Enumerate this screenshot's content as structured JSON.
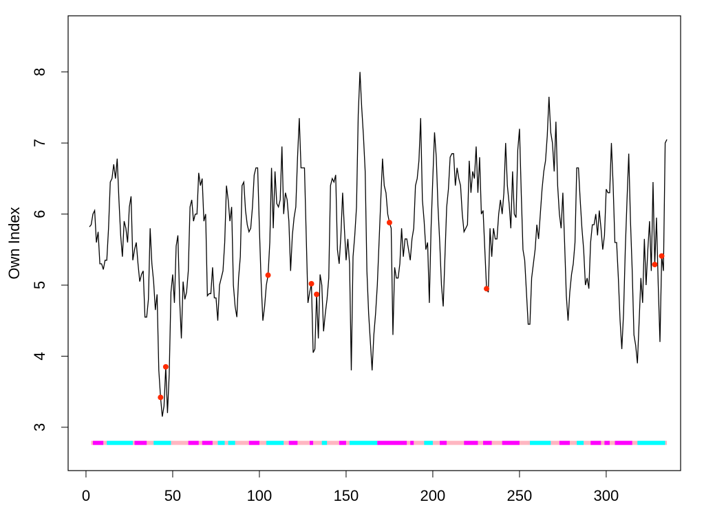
{
  "chart_data": {
    "type": "line",
    "y_label": "Own Index",
    "color": "#000000",
    "x": [
      2,
      3,
      4,
      5,
      6,
      7,
      8,
      9,
      10,
      11,
      12,
      13,
      14,
      15,
      16,
      17,
      18,
      19,
      20,
      21,
      22,
      23,
      24,
      25,
      26,
      27,
      28,
      29,
      30,
      31,
      32,
      33,
      34,
      35,
      36,
      37,
      38,
      39,
      40,
      41,
      42,
      43,
      44,
      45,
      46,
      47,
      48,
      49,
      50,
      51,
      52,
      53,
      54,
      55,
      56,
      57,
      58,
      59,
      60,
      61,
      62,
      63,
      64,
      65,
      66,
      67,
      68,
      69,
      70,
      71,
      72,
      73,
      74,
      75,
      76,
      77,
      78,
      79,
      80,
      81,
      82,
      83,
      84,
      85,
      86,
      87,
      88,
      89,
      90,
      91,
      92,
      93,
      94,
      95,
      96,
      97,
      98,
      99,
      100,
      101,
      102,
      103,
      104,
      105,
      106,
      107,
      108,
      109,
      110,
      111,
      112,
      113,
      114,
      115,
      116,
      117,
      118,
      119,
      120,
      121,
      122,
      123,
      124,
      125,
      126,
      127,
      128,
      129,
      130,
      131,
      132,
      133,
      134,
      135,
      136,
      137,
      138,
      139,
      140,
      141,
      142,
      143,
      144,
      145,
      146,
      147,
      148,
      149,
      150,
      151,
      152,
      153,
      154,
      155,
      156,
      157,
      158,
      159,
      160,
      161,
      162,
      163,
      164,
      165,
      166,
      167,
      168,
      169,
      170,
      171,
      172,
      173,
      174,
      175,
      176,
      177,
      178,
      179,
      180,
      181,
      182,
      183,
      184,
      185,
      186,
      187,
      188,
      189,
      190,
      191,
      192,
      193,
      194,
      195,
      196,
      197,
      198,
      199,
      200,
      201,
      202,
      203,
      204,
      205,
      206,
      207,
      208,
      209,
      210,
      211,
      212,
      213,
      214,
      215,
      216,
      217,
      218,
      219,
      220,
      221,
      222,
      223,
      224,
      225,
      226,
      227,
      228,
      229,
      230,
      231,
      232,
      233,
      234,
      235,
      236,
      237,
      238,
      239,
      240,
      241,
      242,
      243,
      244,
      245,
      246,
      247,
      248,
      249,
      250,
      251,
      252,
      253,
      254,
      255,
      256,
      257,
      258,
      259,
      260,
      261,
      262,
      263,
      264,
      265,
      266,
      267,
      268,
      269,
      270,
      271,
      272,
      273,
      274,
      275,
      276,
      277,
      278,
      279,
      280,
      281,
      282,
      283,
      284,
      285,
      286,
      287,
      288,
      289,
      290,
      291,
      292,
      293,
      294,
      295,
      296,
      297,
      298,
      299,
      300,
      301,
      302,
      303,
      304,
      305,
      306,
      307,
      308,
      309,
      310,
      311,
      312,
      313,
      314,
      315,
      316,
      317,
      318,
      319,
      320,
      321,
      322,
      323,
      324,
      325,
      326,
      327,
      328,
      329,
      330,
      331,
      332,
      333,
      334,
      335
    ],
    "values": [
      5.82,
      5.85,
      6.0,
      6.05,
      5.6,
      5.75,
      5.3,
      5.3,
      5.22,
      5.35,
      5.35,
      5.8,
      6.45,
      6.5,
      6.7,
      6.5,
      6.78,
      6.2,
      5.7,
      5.4,
      5.9,
      5.8,
      5.6,
      6.1,
      6.25,
      5.35,
      5.5,
      5.6,
      5.3,
      5.05,
      5.15,
      5.2,
      4.55,
      4.55,
      4.8,
      5.8,
      5.3,
      5.05,
      4.65,
      4.87,
      3.8,
      3.42,
      3.15,
      3.3,
      3.85,
      3.2,
      3.75,
      4.9,
      5.15,
      4.75,
      5.55,
      5.7,
      4.8,
      4.25,
      5.05,
      4.8,
      4.9,
      5.2,
      6.1,
      6.2,
      5.9,
      6.0,
      6.0,
      6.58,
      6.4,
      6.5,
      5.9,
      6.0,
      4.85,
      4.88,
      4.88,
      5.25,
      4.82,
      4.82,
      4.5,
      5.0,
      5.1,
      5.2,
      5.6,
      6.4,
      6.2,
      5.9,
      6.1,
      5.0,
      4.7,
      4.55,
      5.1,
      5.4,
      6.4,
      6.45,
      6.05,
      5.85,
      5.75,
      5.8,
      6.1,
      6.55,
      6.65,
      6.65,
      5.8,
      5.05,
      4.5,
      4.7,
      5.0,
      5.14,
      5.6,
      6.65,
      5.8,
      6.6,
      6.15,
      6.1,
      6.2,
      6.95,
      6.0,
      6.3,
      6.2,
      5.9,
      5.2,
      5.7,
      5.95,
      6.1,
      6.8,
      7.35,
      6.65,
      6.65,
      6.65,
      5.7,
      4.75,
      4.9,
      5.02,
      4.05,
      4.1,
      4.87,
      4.25,
      5.15,
      5.0,
      4.35,
      4.6,
      4.8,
      5.1,
      6.4,
      6.5,
      6.45,
      6.55,
      5.5,
      5.3,
      5.7,
      6.3,
      5.8,
      5.35,
      5.65,
      5.3,
      3.8,
      5.4,
      5.7,
      6.1,
      7.4,
      8.0,
      7.5,
      7.1,
      6.6,
      5.2,
      4.6,
      4.2,
      3.8,
      4.3,
      4.6,
      5.0,
      5.6,
      6.2,
      6.78,
      6.4,
      6.3,
      6.0,
      5.88,
      5.8,
      4.3,
      5.25,
      5.1,
      5.1,
      5.3,
      5.8,
      5.4,
      5.65,
      5.65,
      5.5,
      5.35,
      5.65,
      5.8,
      6.4,
      6.5,
      6.75,
      7.35,
      6.2,
      5.9,
      5.5,
      5.6,
      4.75,
      5.8,
      6.5,
      7.15,
      6.8,
      6.1,
      5.6,
      5.0,
      4.7,
      5.4,
      6.1,
      6.35,
      6.8,
      6.85,
      6.85,
      6.4,
      6.65,
      6.5,
      6.4,
      6.0,
      5.75,
      5.8,
      5.85,
      6.75,
      6.3,
      6.6,
      6.5,
      6.95,
      6.3,
      6.8,
      6.0,
      6.05,
      5.5,
      4.95,
      4.9,
      5.8,
      5.4,
      5.8,
      5.65,
      5.65,
      6.0,
      6.2,
      6.0,
      6.3,
      7.0,
      6.4,
      6.15,
      5.8,
      6.6,
      6.0,
      5.95,
      6.9,
      7.2,
      6.3,
      5.5,
      5.35,
      4.9,
      4.45,
      4.45,
      5.1,
      5.3,
      5.5,
      5.85,
      5.65,
      6.0,
      6.35,
      6.6,
      6.75,
      7.1,
      7.65,
      7.15,
      7.0,
      6.6,
      7.3,
      6.4,
      6.0,
      5.8,
      6.3,
      5.6,
      4.85,
      4.5,
      4.9,
      5.15,
      5.3,
      5.6,
      6.65,
      6.65,
      6.2,
      5.8,
      5.5,
      5.0,
      5.1,
      4.95,
      5.6,
      5.85,
      5.85,
      6.0,
      5.7,
      6.05,
      5.8,
      5.5,
      5.7,
      6.35,
      6.3,
      6.3,
      7.0,
      6.4,
      5.6,
      5.6,
      5.1,
      4.5,
      4.1,
      4.6,
      5.5,
      6.2,
      6.85,
      5.9,
      5.2,
      4.3,
      4.15,
      3.9,
      4.5,
      5.1,
      4.75,
      5.65,
      5.0,
      5.5,
      5.9,
      5.2,
      6.45,
      5.29,
      5.95,
      5.0,
      4.2,
      5.41,
      5.2,
      7.0,
      7.05
    ],
    "points": {
      "color": "#ff2a00",
      "x": [
        43,
        46,
        105,
        130,
        133,
        175,
        231,
        328,
        332
      ],
      "values": [
        3.42,
        3.85,
        5.14,
        5.02,
        4.87,
        5.88,
        4.95,
        5.29,
        5.41
      ]
    },
    "band_y": 2.78,
    "band_color": "#ffb6c1",
    "bands": [
      {
        "start": 4,
        "end": 10,
        "color": "#ff00ff"
      },
      {
        "start": 12,
        "end": 27,
        "color": "#00ffff"
      },
      {
        "start": 28,
        "end": 35,
        "color": "#ff00ff"
      },
      {
        "start": 39,
        "end": 49,
        "color": "#00ffff"
      },
      {
        "start": 59,
        "end": 65,
        "color": "#ff00ff"
      },
      {
        "start": 67,
        "end": 73,
        "color": "#ff00ff"
      },
      {
        "start": 76,
        "end": 80,
        "color": "#00ffff"
      },
      {
        "start": 82,
        "end": 86,
        "color": "#00ffff"
      },
      {
        "start": 94,
        "end": 100,
        "color": "#ff00ff"
      },
      {
        "start": 104,
        "end": 114,
        "color": "#00ffff"
      },
      {
        "start": 117,
        "end": 122,
        "color": "#ff00ff"
      },
      {
        "start": 129,
        "end": 131,
        "color": "#ff00ff"
      },
      {
        "start": 136,
        "end": 139,
        "color": "#00ffff"
      },
      {
        "start": 146,
        "end": 150,
        "color": "#ff00ff"
      },
      {
        "start": 152,
        "end": 168,
        "color": "#00ffff"
      },
      {
        "start": 168,
        "end": 185,
        "color": "#ff00ff"
      },
      {
        "start": 187,
        "end": 189,
        "color": "#ff00ff"
      },
      {
        "start": 195,
        "end": 200,
        "color": "#00ffff"
      },
      {
        "start": 204,
        "end": 208,
        "color": "#ff00ff"
      },
      {
        "start": 218,
        "end": 226,
        "color": "#ff00ff"
      },
      {
        "start": 229,
        "end": 234,
        "color": "#ff00ff"
      },
      {
        "start": 240,
        "end": 250,
        "color": "#ff00ff"
      },
      {
        "start": 256,
        "end": 268,
        "color": "#00ffff"
      },
      {
        "start": 273,
        "end": 279,
        "color": "#ff00ff"
      },
      {
        "start": 283,
        "end": 287,
        "color": "#00ffff"
      },
      {
        "start": 291,
        "end": 297,
        "color": "#ff00ff"
      },
      {
        "start": 299,
        "end": 302,
        "color": "#ff00ff"
      },
      {
        "start": 305,
        "end": 315,
        "color": "#ff00ff"
      },
      {
        "start": 318,
        "end": 334,
        "color": "#00ffff"
      }
    ],
    "band_start": 3,
    "band_end": 335,
    "xlim": [
      -10.3,
      342.9
    ],
    "ylim": [
      2.39,
      8.79
    ],
    "xticks": [
      0,
      50,
      100,
      150,
      200,
      250,
      300
    ],
    "yticks": [
      3,
      4,
      5,
      6,
      7,
      8
    ]
  }
}
